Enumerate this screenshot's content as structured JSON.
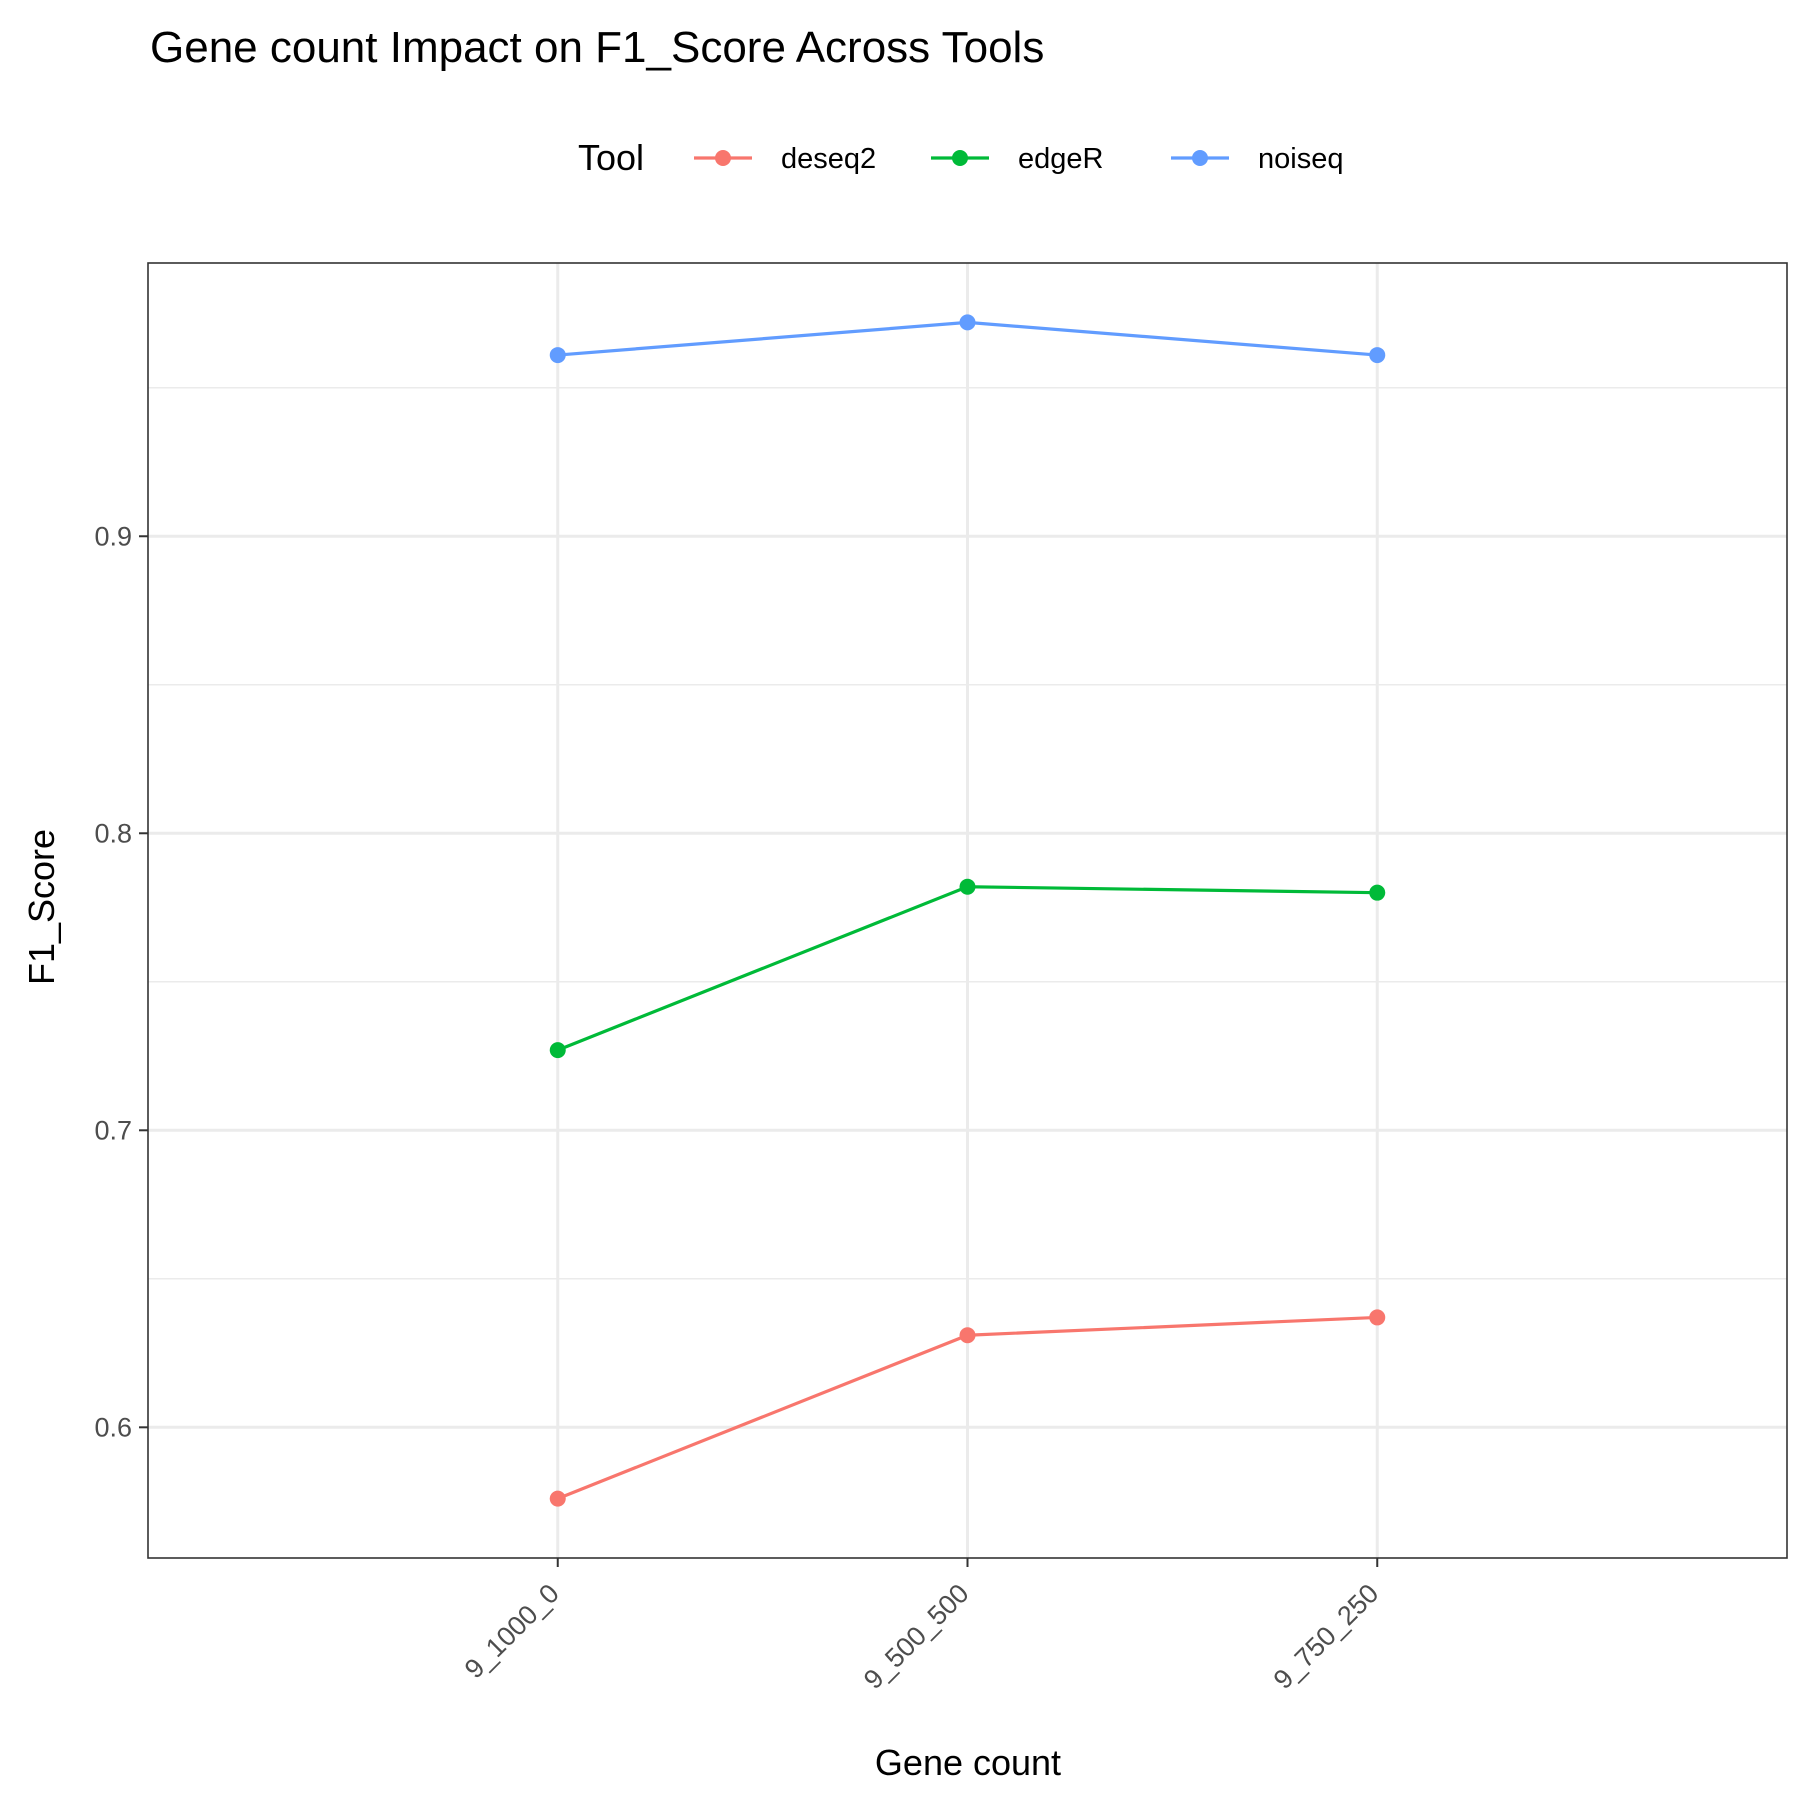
{
  "chart_data": {
    "type": "line",
    "title": "Gene count Impact on F1_Score Across Tools",
    "xlabel": "Gene count",
    "ylabel": "F1_Score",
    "categories": [
      "9_1000_0",
      "9_500_500",
      "9_750_250"
    ],
    "ylim": [
      0.556,
      0.992
    ],
    "yticks": [
      0.6,
      0.7,
      0.8,
      0.9
    ],
    "ytick_labels": [
      "0.6",
      "0.7",
      "0.8",
      "0.9"
    ],
    "grid": true,
    "legend": {
      "title": "Tool",
      "position": "top"
    },
    "series": [
      {
        "name": "deseq2",
        "color": "#F8766D",
        "values": [
          0.576,
          0.631,
          0.637
        ]
      },
      {
        "name": "edgeR",
        "color": "#00BA38",
        "values": [
          0.727,
          0.782,
          0.78
        ]
      },
      {
        "name": "noiseq",
        "color": "#619CFF",
        "values": [
          0.961,
          0.972,
          0.961
        ]
      }
    ]
  }
}
